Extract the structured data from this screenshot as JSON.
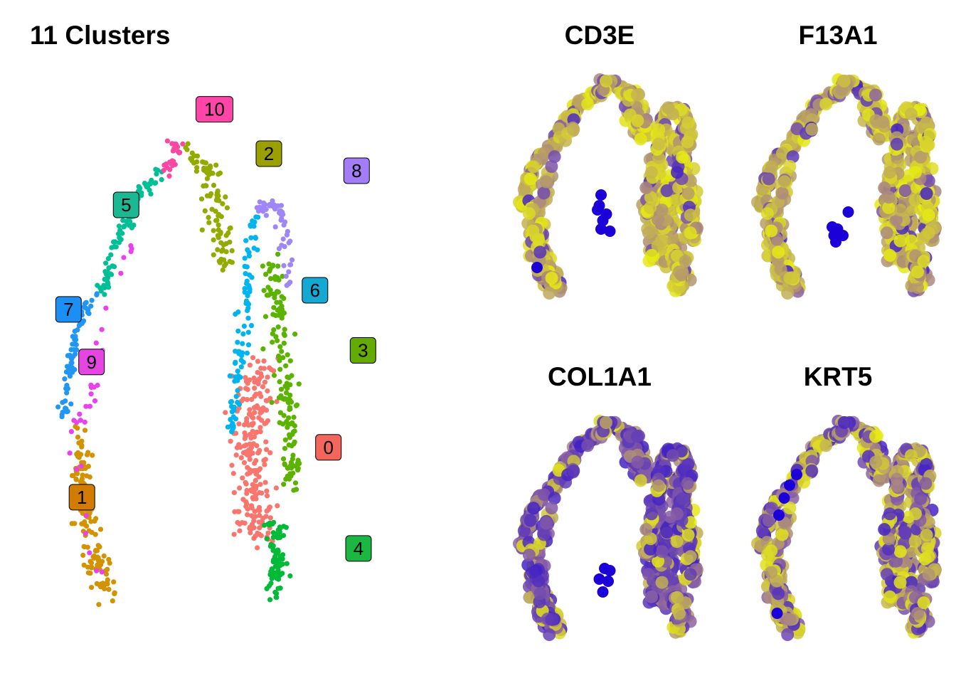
{
  "chart_data": [
    {
      "type": "scatter",
      "title": "11 Clusters",
      "xlabel": "",
      "ylabel": "",
      "grid": false,
      "legend": "none",
      "series": [
        {
          "name": "0",
          "color": "#F8766D",
          "n": 230,
          "path": [
            [
              0.52,
              0.5
            ],
            [
              0.51,
              0.6
            ],
            [
              0.51,
              0.7
            ],
            [
              0.52,
              0.78
            ]
          ],
          "spread": 0.035
        },
        {
          "name": "1",
          "color": "#D39200",
          "n": 140,
          "path": [
            [
              0.12,
              0.6
            ],
            [
              0.12,
              0.7
            ],
            [
              0.14,
              0.8
            ],
            [
              0.18,
              0.88
            ]
          ],
          "spread": 0.022
        },
        {
          "name": "2",
          "color": "#93AA00",
          "n": 95,
          "path": [
            [
              0.36,
              0.14
            ],
            [
              0.41,
              0.18
            ],
            [
              0.43,
              0.26
            ],
            [
              0.45,
              0.34
            ]
          ],
          "spread": 0.022
        },
        {
          "name": "3",
          "color": "#5BB300",
          "n": 150,
          "path": [
            [
              0.55,
              0.33
            ],
            [
              0.57,
              0.42
            ],
            [
              0.58,
              0.52
            ],
            [
              0.59,
              0.62
            ],
            [
              0.6,
              0.7
            ]
          ],
          "spread": 0.018
        },
        {
          "name": "4",
          "color": "#00BA38",
          "n": 75,
          "path": [
            [
              0.56,
              0.76
            ],
            [
              0.56,
              0.82
            ],
            [
              0.56,
              0.88
            ]
          ],
          "spread": 0.018
        },
        {
          "name": "5",
          "color": "#00BF96",
          "n": 85,
          "path": [
            [
              0.3,
              0.18
            ],
            [
              0.25,
              0.22
            ],
            [
              0.2,
              0.3
            ],
            [
              0.17,
              0.38
            ]
          ],
          "spread": 0.012
        },
        {
          "name": "6",
          "color": "#00B4EF",
          "n": 90,
          "path": [
            [
              0.51,
              0.25
            ],
            [
              0.5,
              0.36
            ],
            [
              0.49,
              0.44
            ],
            [
              0.47,
              0.52
            ],
            [
              0.46,
              0.62
            ]
          ],
          "spread": 0.013
        },
        {
          "name": "7",
          "color": "#2196F3",
          "n": 75,
          "path": [
            [
              0.15,
              0.38
            ],
            [
              0.11,
              0.44
            ],
            [
              0.09,
              0.52
            ],
            [
              0.08,
              0.58
            ]
          ],
          "spread": 0.012
        },
        {
          "name": "8",
          "color": "#9F86F7",
          "n": 55,
          "path": [
            [
              0.52,
              0.24
            ],
            [
              0.56,
              0.23
            ],
            [
              0.58,
              0.27
            ],
            [
              0.59,
              0.37
            ]
          ],
          "spread": 0.014
        },
        {
          "name": "9",
          "color": "#E742EB",
          "n": 40,
          "path": [
            [
              0.24,
              0.27
            ],
            [
              0.16,
              0.46
            ],
            [
              0.14,
              0.55
            ],
            [
              0.1,
              0.62
            ],
            [
              0.16,
              0.85
            ]
          ],
          "spread": 0.012
        },
        {
          "name": "10",
          "color": "#F948A1",
          "n": 30,
          "path": [
            [
              0.33,
              0.13
            ],
            [
              0.34,
              0.14
            ],
            [
              0.3,
              0.19
            ]
          ],
          "spread": 0.01
        }
      ],
      "cluster_labels": [
        {
          "text": "10",
          "x": 0.335,
          "y": 0.16,
          "color": "#FF45A8"
        },
        {
          "text": "2",
          "x": 0.42,
          "y": 0.225,
          "color": "#99A000"
        },
        {
          "text": "8",
          "x": 0.557,
          "y": 0.25,
          "color": "#A27DF6"
        },
        {
          "text": "5",
          "x": 0.197,
          "y": 0.3,
          "color": "#1CB894"
        },
        {
          "text": "6",
          "x": 0.492,
          "y": 0.425,
          "color": "#14A8D2"
        },
        {
          "text": "7",
          "x": 0.107,
          "y": 0.453,
          "color": "#1C8FF5"
        },
        {
          "text": "3",
          "x": 0.567,
          "y": 0.513,
          "color": "#64AB00"
        },
        {
          "text": "9",
          "x": 0.143,
          "y": 0.53,
          "color": "#E546E2"
        },
        {
          "text": "0",
          "x": 0.513,
          "y": 0.655,
          "color": "#F4665C"
        },
        {
          "text": "1",
          "x": 0.128,
          "y": 0.728,
          "color": "#D17B00"
        },
        {
          "text": "4",
          "x": 0.56,
          "y": 0.803,
          "color": "#1CB643"
        }
      ]
    },
    {
      "type": "scatter",
      "title": "CD3E",
      "xlabel": "",
      "ylabel": "",
      "color_scale": {
        "low": "#E8EE10",
        "high": "#1C00D8"
      },
      "mean_expression": 0.12,
      "high_points": [
        [
          0.44,
          0.61
        ],
        [
          0.47,
          0.66
        ],
        [
          0.49,
          0.63
        ],
        [
          0.46,
          0.7
        ],
        [
          0.51,
          0.71
        ],
        [
          0.1,
          0.88
        ],
        [
          0.46,
          0.54
        ],
        [
          0.45,
          0.59
        ]
      ]
    },
    {
      "type": "scatter",
      "title": "F13A1",
      "xlabel": "",
      "ylabel": "",
      "color_scale": {
        "low": "#E8EE10",
        "high": "#1C00D8"
      },
      "mean_expression": 0.15,
      "high_points": [
        [
          0.42,
          0.69
        ],
        [
          0.45,
          0.7
        ],
        [
          0.43,
          0.73
        ],
        [
          0.44,
          0.76
        ],
        [
          0.48,
          0.73
        ],
        [
          0.51,
          0.62
        ]
      ]
    },
    {
      "type": "scatter",
      "title": "COL1A1",
      "xlabel": "",
      "ylabel": "",
      "color_scale": {
        "low": "#E8EE10",
        "high": "#1C00D8"
      },
      "mean_expression": 0.7,
      "high_points": [
        [
          0.48,
          0.69
        ],
        [
          0.51,
          0.7
        ],
        [
          0.5,
          0.75
        ],
        [
          0.47,
          0.8
        ],
        [
          0.45,
          0.74
        ]
      ]
    },
    {
      "type": "scatter",
      "title": "KRT5",
      "xlabel": "",
      "ylabel": "",
      "color_scale": {
        "low": "#E8EE10",
        "high": "#1C00D8"
      },
      "mean_expression": 0.45,
      "high_points": [
        [
          0.22,
          0.25
        ],
        [
          0.18,
          0.3
        ],
        [
          0.15,
          0.36
        ],
        [
          0.12,
          0.44
        ],
        [
          0.11,
          0.9
        ]
      ]
    }
  ]
}
